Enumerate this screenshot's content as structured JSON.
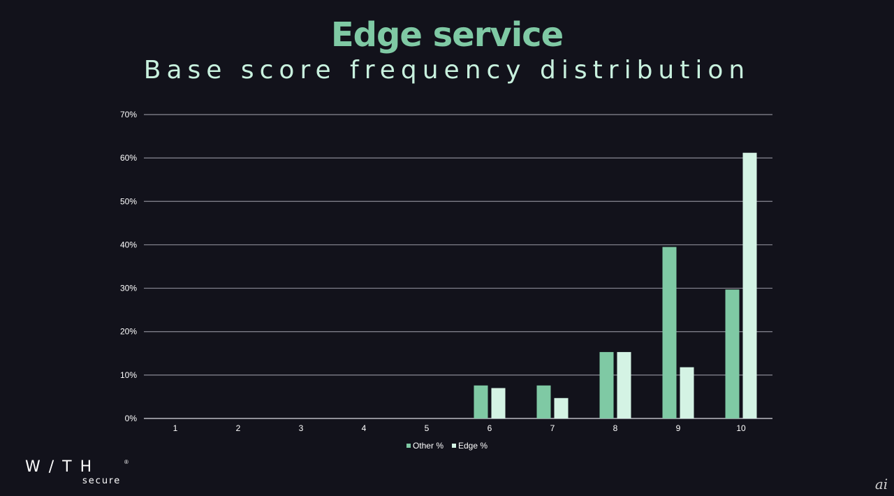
{
  "slide": {
    "title": "Edge service",
    "subtitle": "Base score frequency distribution"
  },
  "colors": {
    "background": "#12121b",
    "title": "#7fc9a4",
    "subtitle": "#c8f1de",
    "other": "#7fc9a4",
    "edge": "#d4f3e4",
    "grid": "#8a8a95"
  },
  "chart_data": {
    "type": "bar",
    "categories": [
      "1",
      "2",
      "3",
      "4",
      "5",
      "6",
      "7",
      "8",
      "9",
      "10"
    ],
    "series": [
      {
        "name": "Other %",
        "values": [
          0,
          0,
          0,
          0,
          0,
          7.6,
          7.6,
          15.3,
          39.5,
          29.7
        ]
      },
      {
        "name": "Edge %",
        "values": [
          0,
          0,
          0,
          0,
          0,
          7.0,
          4.7,
          15.3,
          11.8,
          61.2
        ]
      }
    ],
    "yticks": [
      "0%",
      "10%",
      "20%",
      "30%",
      "40%",
      "50%",
      "60%",
      "70%"
    ],
    "ylim": [
      0,
      70
    ],
    "grid": true,
    "legend_position": "bottom"
  },
  "logo": {
    "text_main": "W/TH",
    "text_sub": "secure",
    "reg": "®"
  },
  "watermark": {
    "text": "ai"
  }
}
